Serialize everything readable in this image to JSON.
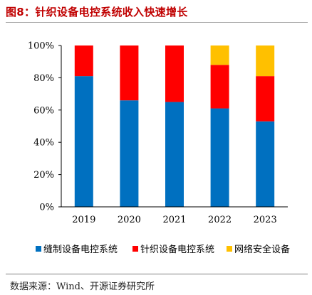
{
  "title": "图8：针织设备电控系统收入快速增长",
  "source": "数据来源：Wind、开源证券研究所",
  "chart_data": {
    "type": "bar",
    "stacked": true,
    "categories": [
      "2019",
      "2020",
      "2021",
      "2022",
      "2023"
    ],
    "series": [
      {
        "name": "缝制设备电控系统",
        "color": "#0070c0",
        "values": [
          81,
          66,
          65,
          61,
          53
        ]
      },
      {
        "name": "针织设备电控系统",
        "color": "#ff0000",
        "values": [
          19,
          34,
          35,
          27,
          28
        ]
      },
      {
        "name": "网络安全设备",
        "color": "#ffc000",
        "values": [
          0,
          0,
          0,
          12,
          19
        ]
      }
    ],
    "ylim": [
      0,
      100
    ],
    "yticks": [
      "0%",
      "20%",
      "40%",
      "60%",
      "80%",
      "100%"
    ],
    "grid": false,
    "legend_position": "bottom"
  }
}
